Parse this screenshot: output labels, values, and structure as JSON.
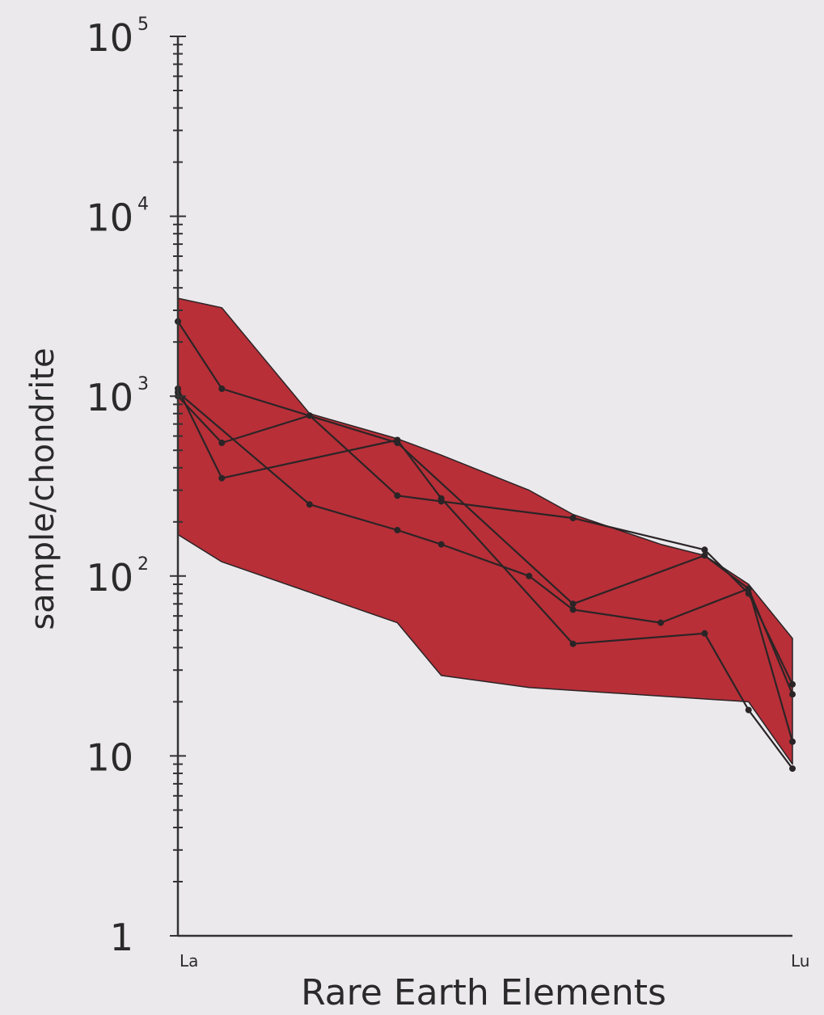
{
  "chart_data": {
    "type": "line",
    "title": "",
    "xlabel": "Rare Earth Elements",
    "ylabel": "sample/chondrite",
    "yscale": "log",
    "ylim": [
      1,
      100000
    ],
    "x_tick_labels": [
      "La",
      "Lu"
    ],
    "y_ticks": [
      {
        "value": 1,
        "label": "1",
        "exponent": ""
      },
      {
        "value": 10,
        "label": "10",
        "exponent": ""
      },
      {
        "value": 100,
        "label": "10",
        "exponent": "2"
      },
      {
        "value": 1000,
        "label": "10",
        "exponent": "3"
      },
      {
        "value": 10000,
        "label": "10",
        "exponent": "4"
      },
      {
        "value": 100000,
        "label": "10",
        "exponent": "5"
      }
    ],
    "grid": false,
    "colors": {
      "band_fill": "#b82f38",
      "line": "#2b2426",
      "axis": "#333333",
      "background": "#ebe9ec"
    },
    "x_positions": [
      0,
      1,
      3,
      5,
      6,
      8,
      9,
      12,
      13,
      14
    ],
    "band": {
      "upper": [
        [
          0,
          3500
        ],
        [
          1,
          3100
        ],
        [
          3,
          800
        ],
        [
          5,
          580
        ],
        [
          6,
          470
        ],
        [
          8,
          300
        ],
        [
          9,
          220
        ],
        [
          11,
          150
        ],
        [
          12,
          130
        ],
        [
          13,
          90
        ],
        [
          14,
          45
        ]
      ],
      "lower": [
        [
          0,
          170
        ],
        [
          1,
          120
        ],
        [
          5,
          55
        ],
        [
          6,
          28
        ],
        [
          8,
          24
        ],
        [
          13,
          20
        ],
        [
          14,
          9
        ]
      ]
    },
    "series": [
      {
        "points": [
          [
            0,
            2600
          ],
          [
            1,
            1100
          ],
          [
            5,
            550
          ],
          [
            9,
            70
          ],
          [
            12,
            130
          ],
          [
            13,
            85
          ],
          [
            14,
            22
          ]
        ]
      },
      {
        "points": [
          [
            0,
            1100
          ],
          [
            1,
            350
          ],
          [
            5,
            570
          ],
          [
            6,
            270
          ],
          [
            9,
            42
          ],
          [
            12,
            48
          ],
          [
            13,
            18
          ],
          [
            14,
            8.5
          ]
        ]
      },
      {
        "points": [
          [
            0,
            1000
          ],
          [
            1,
            550
          ],
          [
            3,
            780
          ],
          [
            5,
            280
          ],
          [
            6,
            260
          ],
          [
            9,
            210
          ],
          [
            12,
            140
          ],
          [
            13,
            80
          ],
          [
            14,
            25
          ]
        ]
      },
      {
        "points": [
          [
            0,
            1050
          ],
          [
            3,
            250
          ],
          [
            5,
            180
          ],
          [
            6,
            150
          ],
          [
            8,
            100
          ],
          [
            9,
            65
          ],
          [
            11,
            55
          ],
          [
            13,
            85
          ],
          [
            14,
            12
          ]
        ]
      }
    ]
  }
}
